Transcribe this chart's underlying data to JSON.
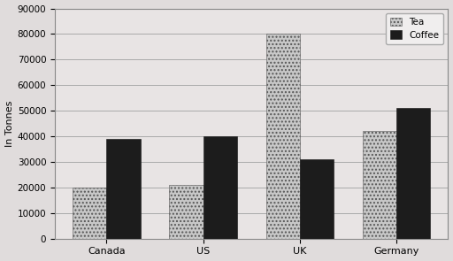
{
  "categories": [
    "Canada",
    "US",
    "UK",
    "Germany"
  ],
  "tea_values": [
    20000,
    21000,
    80000,
    42000
  ],
  "coffee_values": [
    39000,
    40000,
    31000,
    51000
  ],
  "ylabel": "In Tonnes",
  "ylim": [
    0,
    90000
  ],
  "yticks": [
    0,
    10000,
    20000,
    30000,
    40000,
    50000,
    60000,
    70000,
    80000,
    90000
  ],
  "tea_color": "#c8c8c8",
  "tea_hatch": "....",
  "coffee_color": "#1c1c1c",
  "coffee_hatch": "",
  "legend_tea": "Tea",
  "legend_coffee": "Coffee",
  "bar_width": 0.35,
  "background_color": "#f0eeee",
  "plot_bg_color": "#e8e4e4",
  "grid_color": "#aaaaaa",
  "figure_bg": "#e0dcdc"
}
